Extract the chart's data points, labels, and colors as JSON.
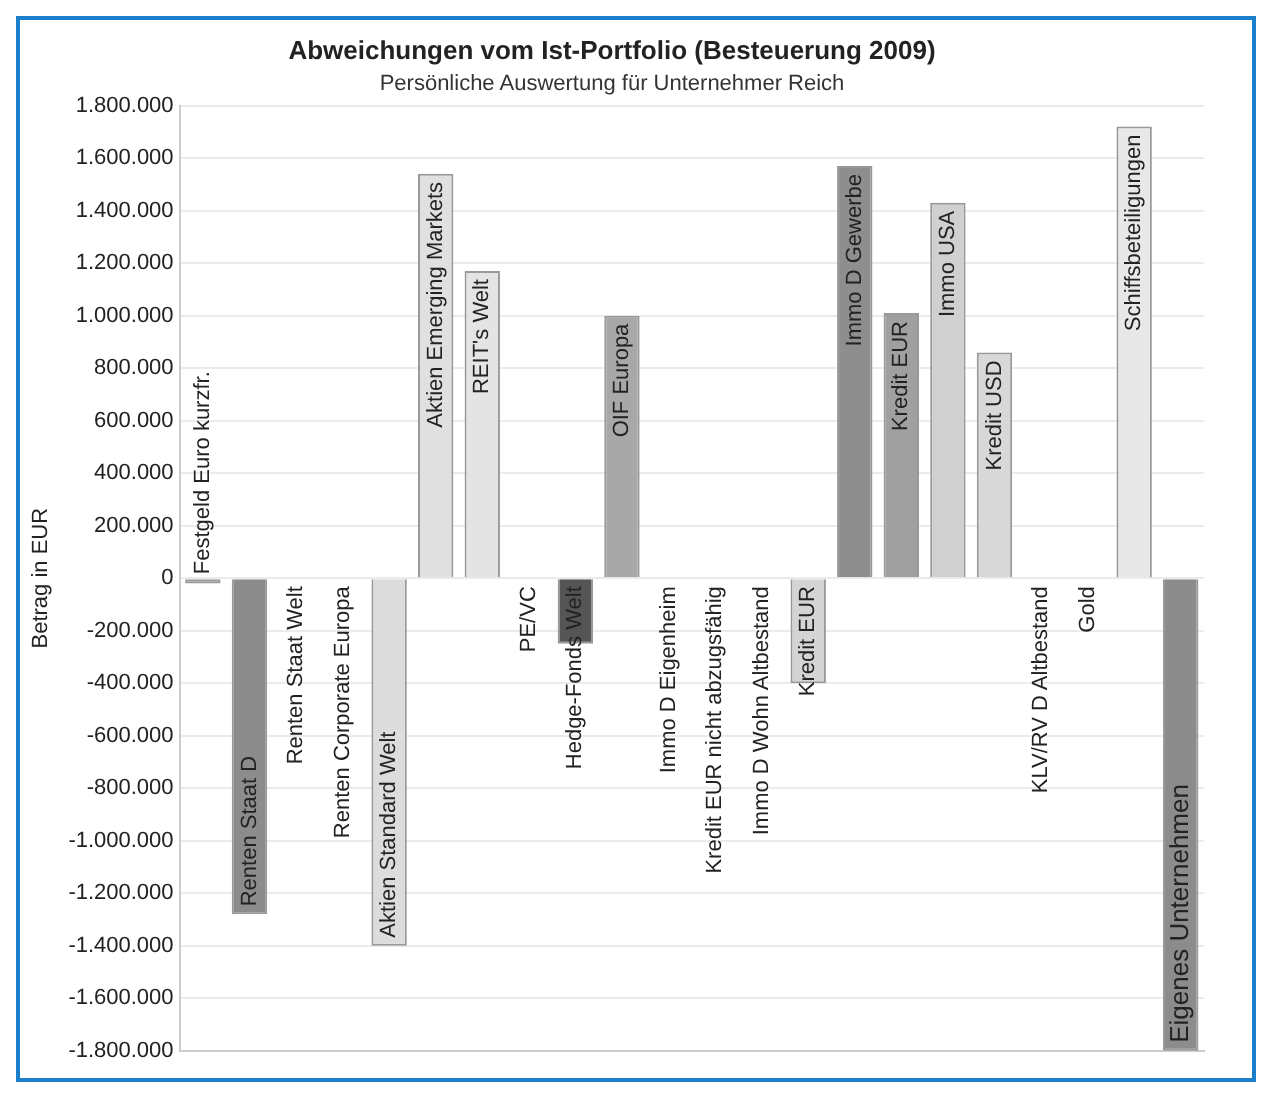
{
  "chart_data": {
    "type": "bar",
    "title": "Abweichungen vom Ist-Portfolio (Besteuerung 2009)",
    "subtitle": "Persönliche Auswertung für Unternehmer Reich",
    "ylabel": "Betrag in EUR",
    "categories": [
      "Festgeld Euro kurzfr.",
      "Renten Staat D",
      "Renten Staat Welt",
      "Renten Corporate Europa",
      "Aktien Standard Welt",
      "Aktien Emerging Markets",
      "REIT's Welt",
      "PE/VC",
      "Hedge-Fonds Welt",
      "OIF Europa",
      "Immo D Eigenheim",
      "Kredit EUR nicht abzugsfähig",
      "Immo D Wohn Altbestand",
      "Kredit EUR",
      "Immo D Gewerbe",
      "Kredit EUR",
      "Immo USA",
      "Kredit USD",
      "KLV/RV D Altbestand",
      "Gold",
      "Schiffsbeteiligungen",
      "Eigenes Unternehmen"
    ],
    "values": [
      -20000,
      -1280000,
      0,
      0,
      -1400000,
      1540000,
      1170000,
      0,
      -250000,
      1000000,
      0,
      0,
      0,
      -400000,
      1570000,
      1010000,
      1430000,
      860000,
      0,
      0,
      1720000,
      -1800000
    ],
    "colors": [
      "#9a9a9a",
      "#8c8c8c",
      "#cccccc",
      "#cccccc",
      "#dcdcdc",
      "#e0e0e0",
      "#e4e4e4",
      "#cccccc",
      "#555555",
      "#a8a8a8",
      "#cccccc",
      "#cccccc",
      "#cccccc",
      "#d4d4d4",
      "#8e8e8e",
      "#a0a0a0",
      "#d0d0d0",
      "#d8d8d8",
      "#cccccc",
      "#cccccc",
      "#e8e8e8",
      "#8c8c8c"
    ],
    "ylim": [
      -1800000,
      1800000
    ],
    "yticks": [
      {
        "value": -1800000,
        "label": "-1.800.000"
      },
      {
        "value": -1600000,
        "label": "-1.600.000"
      },
      {
        "value": -1400000,
        "label": "-1.400.000"
      },
      {
        "value": -1200000,
        "label": "-1.200.000"
      },
      {
        "value": -1000000,
        "label": "-1.000.000"
      },
      {
        "value": -800000,
        "label": "-800.000"
      },
      {
        "value": -600000,
        "label": "-600.000"
      },
      {
        "value": -400000,
        "label": "-400.000"
      },
      {
        "value": -200000,
        "label": "-200.000"
      },
      {
        "value": 0,
        "label": "0"
      },
      {
        "value": 200000,
        "label": "200.000"
      },
      {
        "value": 400000,
        "label": "400.000"
      },
      {
        "value": 600000,
        "label": "600.000"
      },
      {
        "value": 800000,
        "label": "800.000"
      },
      {
        "value": 1000000,
        "label": "1.000.000"
      },
      {
        "value": 1200000,
        "label": "1.200.000"
      },
      {
        "value": 1400000,
        "label": "1.400.000"
      },
      {
        "value": 1600000,
        "label": "1.600.000"
      },
      {
        "value": 1800000,
        "label": "1.800.000"
      }
    ],
    "grid": "y",
    "tick_labels": "y"
  }
}
